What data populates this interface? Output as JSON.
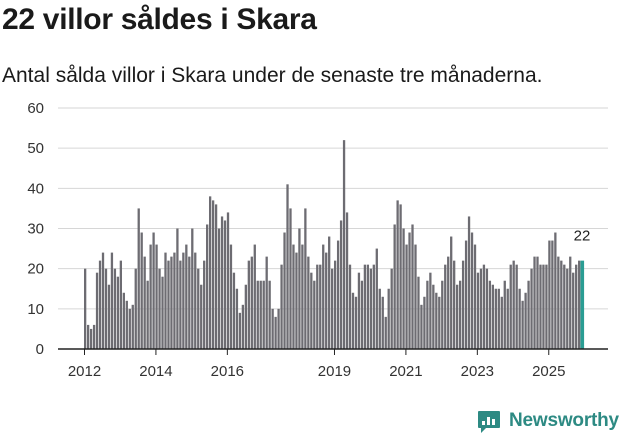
{
  "header": {
    "title": "22 villor såldes i Skara",
    "subtitle": "Antal sålda villor i Skara under de senaste tre månaderna."
  },
  "brand": {
    "name": "Newsworthy"
  },
  "colors": {
    "bar": "#6d6c72",
    "highlight": "#2a9d93",
    "axis": "#222222",
    "grid": "#d6d6d6"
  },
  "chart_data": {
    "type": "bar",
    "title": "22 villor såldes i Skara",
    "subtitle": "Antal sålda villor i Skara under de senaste tre månaderna.",
    "xlabel": "",
    "ylabel": "",
    "ylim": [
      0,
      60
    ],
    "yticks": [
      0,
      10,
      20,
      30,
      40,
      50,
      60
    ],
    "xticks": [
      "2012",
      "2014",
      "2016",
      "2019",
      "2021",
      "2023",
      "2025"
    ],
    "xtick_positions": [
      2012,
      2014,
      2016,
      2019,
      2021,
      2023,
      2025
    ],
    "x_start": 2012,
    "periods_per_year": 12,
    "grid": true,
    "values": [
      20,
      6,
      5,
      6,
      19,
      22,
      24,
      20,
      16,
      24,
      20,
      18,
      22,
      14,
      12,
      10,
      11,
      20,
      35,
      29,
      23,
      17,
      26,
      29,
      26,
      20,
      18,
      24,
      22,
      23,
      24,
      30,
      22,
      24,
      26,
      23,
      30,
      24,
      20,
      16,
      22,
      31,
      38,
      37,
      36,
      30,
      33,
      32,
      34,
      26,
      19,
      15,
      9,
      11,
      16,
      22,
      23,
      26,
      17,
      17,
      17,
      23,
      17,
      10,
      8,
      10,
      21,
      29,
      41,
      35,
      26,
      24,
      30,
      26,
      35,
      23,
      19,
      17,
      21,
      21,
      26,
      24,
      28,
      20,
      22,
      27,
      32,
      52,
      34,
      21,
      14,
      13,
      19,
      17,
      21,
      21,
      20,
      21,
      25,
      15,
      13,
      8,
      15,
      20,
      31,
      37,
      36,
      30,
      26,
      29,
      31,
      26,
      18,
      11,
      13,
      17,
      19,
      16,
      14,
      13,
      17,
      21,
      23,
      28,
      22,
      16,
      17,
      22,
      27,
      33,
      29,
      26,
      19,
      20,
      21,
      20,
      17,
      16,
      15,
      15,
      13,
      17,
      15,
      21,
      22,
      21,
      15,
      12,
      14,
      17,
      20,
      23,
      23,
      21,
      21,
      21,
      27,
      27,
      29,
      23,
      22,
      21,
      20,
      23,
      19,
      21,
      22,
      22
    ],
    "highlight_index": 167,
    "highlight_label": "22"
  }
}
